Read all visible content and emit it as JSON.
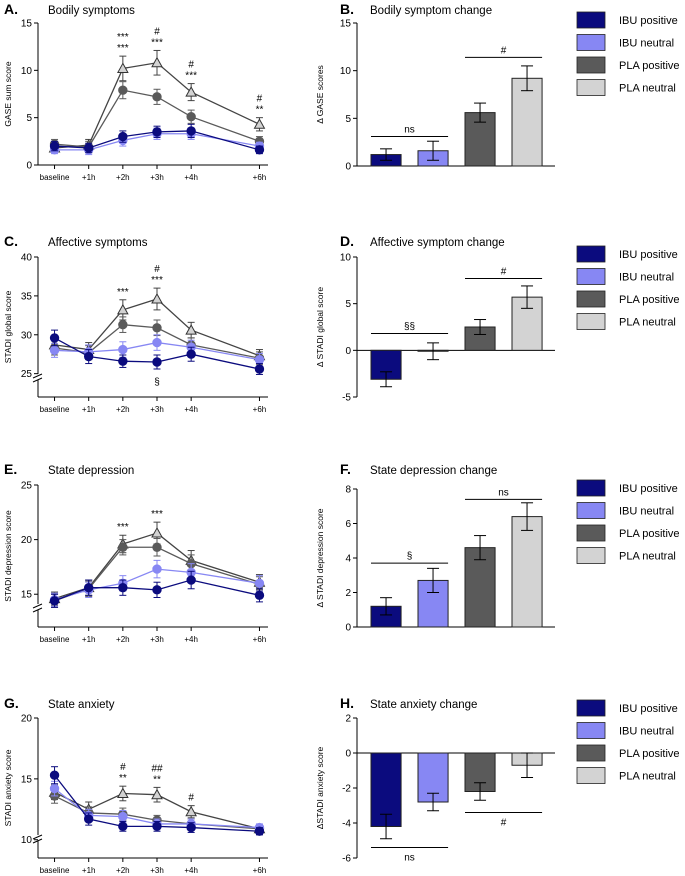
{
  "colors": {
    "ibu_positive": "#0b0b7e",
    "ibu_neutral": "#8787f3",
    "pla_positive": "#5a5a5a",
    "pla_neutral": "#d3d3d3",
    "axis": "#000000"
  },
  "legend": [
    "IBU positive",
    "IBU neutral",
    "PLA positive",
    "PLA neutral"
  ],
  "line_series_names": [
    "IBU positive",
    "IBU neutral",
    "PLA positive",
    "PLA neutral"
  ],
  "bar_categories": [
    "IBU positive",
    "IBU neutral",
    "PLA positive",
    "PLA neutral"
  ],
  "chart_data": [
    {
      "id": "A",
      "type": "line",
      "panel_label": "A.",
      "title": "Bodily symptoms",
      "xlabel": "",
      "ylabel": "GASE sum score",
      "x": [
        "baseline",
        "+1h",
        "+2h",
        "+3h",
        "+4h",
        "+6h"
      ],
      "x_positions": [
        0,
        1,
        2,
        3,
        4,
        6
      ],
      "ylim": [
        0,
        15
      ],
      "yticks": [
        0,
        5,
        10,
        15
      ],
      "axis_break": false,
      "series": [
        {
          "name": "IBU positive",
          "values": [
            2.0,
            1.8,
            3.0,
            3.5,
            3.6,
            1.6
          ],
          "errors": [
            0.5,
            0.5,
            0.6,
            0.6,
            0.7,
            0.4
          ]
        },
        {
          "name": "IBU neutral",
          "values": [
            1.6,
            1.6,
            2.6,
            3.3,
            3.3,
            2.0
          ],
          "errors": [
            0.4,
            0.5,
            0.6,
            0.6,
            0.6,
            0.4
          ]
        },
        {
          "name": "PLA positive",
          "values": [
            2.2,
            1.9,
            7.9,
            7.2,
            5.1,
            2.5
          ],
          "errors": [
            0.5,
            0.6,
            0.9,
            0.8,
            0.7,
            0.5
          ]
        },
        {
          "name": "PLA neutral",
          "values": [
            1.8,
            2.1,
            10.2,
            10.8,
            7.7,
            4.3
          ],
          "errors": [
            0.4,
            0.6,
            1.3,
            1.3,
            0.9,
            0.7
          ]
        }
      ],
      "annotations": [
        {
          "x": 2,
          "lines": [
            "***",
            "***"
          ]
        },
        {
          "x": 3,
          "lines": [
            "#",
            "***"
          ]
        },
        {
          "x": 4,
          "lines": [
            "#",
            "***"
          ]
        },
        {
          "x": 6,
          "lines": [
            "#",
            "**"
          ]
        }
      ],
      "below_annotations": []
    },
    {
      "id": "B",
      "type": "bar",
      "panel_label": "B.",
      "title": "Bodily symptom change",
      "ylabel": "Δ GASE scores",
      "ylim": [
        0,
        15
      ],
      "yticks": [
        0,
        5,
        10,
        15
      ],
      "categories": [
        "IBU positive",
        "IBU neutral",
        "PLA positive",
        "PLA neutral"
      ],
      "values": [
        1.2,
        1.6,
        5.6,
        9.2
      ],
      "errors": [
        0.6,
        1.0,
        1.0,
        1.3
      ],
      "brackets": [
        {
          "from": 0,
          "to": 1,
          "level": 3.1,
          "label": "ns",
          "side": "above"
        },
        {
          "from": 2,
          "to": 3,
          "level": 11.4,
          "label": "#",
          "side": "above"
        }
      ]
    },
    {
      "id": "C",
      "type": "line",
      "panel_label": "C.",
      "title": "Affective symptoms",
      "xlabel": "",
      "ylabel": "STADI global score",
      "x": [
        "baseline",
        "+1h",
        "+2h",
        "+3h",
        "+4h",
        "+6h"
      ],
      "x_positions": [
        0,
        1,
        2,
        3,
        4,
        6
      ],
      "ylim": [
        22,
        40
      ],
      "yticks": [
        25,
        30,
        35,
        40
      ],
      "axis_break": true,
      "series": [
        {
          "name": "IBU positive",
          "values": [
            29.6,
            27.2,
            26.6,
            26.5,
            27.5,
            25.6
          ],
          "errors": [
            1.0,
            0.9,
            0.8,
            0.9,
            0.9,
            0.7
          ]
        },
        {
          "name": "IBU neutral",
          "values": [
            28.0,
            27.8,
            28.1,
            29.0,
            28.4,
            26.8
          ],
          "errors": [
            0.9,
            0.9,
            1.0,
            1.0,
            0.9,
            0.8
          ]
        },
        {
          "name": "PLA positive",
          "values": [
            28.3,
            27.7,
            31.3,
            30.9,
            28.7,
            27.0
          ],
          "errors": [
            0.9,
            0.9,
            1.0,
            1.0,
            0.9,
            0.8
          ]
        },
        {
          "name": "PLA neutral",
          "values": [
            28.7,
            28.1,
            33.2,
            34.6,
            30.6,
            27.3
          ],
          "errors": [
            0.9,
            0.9,
            1.3,
            1.4,
            1.0,
            0.8
          ]
        }
      ],
      "annotations": [
        {
          "x": 2,
          "lines": [
            "***"
          ]
        },
        {
          "x": 3,
          "lines": [
            "#",
            "***"
          ]
        }
      ],
      "below_annotations": [
        {
          "x": 3,
          "label": "§"
        }
      ]
    },
    {
      "id": "D",
      "type": "bar",
      "panel_label": "D.",
      "title": "Affective symptom change",
      "ylabel": "Δ STADI global score",
      "ylim": [
        -5,
        10
      ],
      "yticks": [
        -5,
        0,
        5,
        10
      ],
      "categories": [
        "IBU positive",
        "IBU neutral",
        "PLA positive",
        "PLA neutral"
      ],
      "values": [
        -3.1,
        -0.1,
        2.5,
        5.7
      ],
      "errors": [
        0.8,
        0.9,
        0.8,
        1.2
      ],
      "brackets": [
        {
          "from": 0,
          "to": 1,
          "level": 1.8,
          "label": "§§",
          "side": "above"
        },
        {
          "from": 2,
          "to": 3,
          "level": 7.7,
          "label": "#",
          "side": "above"
        }
      ]
    },
    {
      "id": "E",
      "type": "line",
      "panel_label": "E.",
      "title": "State depression",
      "xlabel": "",
      "ylabel": "STADI depression score",
      "x": [
        "baseline",
        "+1h",
        "+2h",
        "+3h",
        "+4h",
        "+6h"
      ],
      "x_positions": [
        0,
        1,
        2,
        3,
        4,
        6
      ],
      "ylim": [
        12,
        25
      ],
      "yticks": [
        15,
        20,
        25
      ],
      "axis_break": true,
      "series": [
        {
          "name": "IBU positive",
          "values": [
            14.4,
            15.6,
            15.6,
            15.4,
            16.3,
            14.9
          ],
          "errors": [
            0.6,
            0.7,
            0.7,
            0.7,
            0.8,
            0.6
          ]
        },
        {
          "name": "IBU neutral",
          "values": [
            14.5,
            15.4,
            16.0,
            17.3,
            17.0,
            16.0
          ],
          "errors": [
            0.6,
            0.7,
            0.7,
            0.8,
            0.8,
            0.7
          ]
        },
        {
          "name": "PLA positive",
          "values": [
            14.4,
            15.5,
            19.3,
            19.3,
            17.8,
            15.9
          ],
          "errors": [
            0.6,
            0.7,
            0.7,
            0.8,
            0.8,
            0.7
          ]
        },
        {
          "name": "PLA neutral",
          "values": [
            14.6,
            15.6,
            19.6,
            20.6,
            18.1,
            16.1
          ],
          "errors": [
            0.6,
            0.7,
            0.8,
            1.0,
            0.9,
            0.7
          ]
        }
      ],
      "annotations": [
        {
          "x": 2,
          "lines": [
            "***"
          ]
        },
        {
          "x": 3,
          "lines": [
            "***"
          ]
        }
      ],
      "below_annotations": []
    },
    {
      "id": "F",
      "type": "bar",
      "panel_label": "F.",
      "title": "State depression change",
      "ylabel": "Δ STADI depression score",
      "ylim": [
        0,
        8
      ],
      "yticks": [
        0,
        2,
        4,
        6,
        8
      ],
      "categories": [
        "IBU positive",
        "IBU neutral",
        "PLA positive",
        "PLA neutral"
      ],
      "values": [
        1.2,
        2.7,
        4.6,
        6.4
      ],
      "errors": [
        0.5,
        0.7,
        0.7,
        0.8
      ],
      "brackets": [
        {
          "from": 0,
          "to": 1,
          "level": 3.7,
          "label": "§",
          "side": "above"
        },
        {
          "from": 2,
          "to": 3,
          "level": 7.4,
          "label": "ns",
          "side": "above"
        }
      ]
    },
    {
      "id": "G",
      "type": "line",
      "panel_label": "G.",
      "title": "State anxiety",
      "xlabel": "",
      "ylabel": "STADI anxiety score",
      "x": [
        "baseline",
        "+1h",
        "+2h",
        "+3h",
        "+4h",
        "+6h"
      ],
      "x_positions": [
        0,
        1,
        2,
        3,
        4,
        6
      ],
      "ylim": [
        8.5,
        20
      ],
      "yticks": [
        10,
        15,
        20
      ],
      "axis_break": true,
      "series": [
        {
          "name": "IBU positive",
          "values": [
            15.3,
            11.7,
            11.1,
            11.1,
            11.0,
            10.7
          ],
          "errors": [
            0.7,
            0.5,
            0.4,
            0.4,
            0.4,
            0.3
          ]
        },
        {
          "name": "IBU neutral",
          "values": [
            14.2,
            12.0,
            11.9,
            11.3,
            11.3,
            11.0
          ],
          "errors": [
            0.6,
            0.5,
            0.5,
            0.4,
            0.4,
            0.3
          ]
        },
        {
          "name": "PLA positive",
          "values": [
            13.6,
            12.2,
            12.1,
            11.6,
            11.3,
            10.9
          ],
          "errors": [
            0.6,
            0.5,
            0.5,
            0.4,
            0.4,
            0.3
          ]
        },
        {
          "name": "PLA neutral",
          "values": [
            13.9,
            12.5,
            13.8,
            13.7,
            12.3,
            10.9
          ],
          "errors": [
            0.6,
            0.6,
            0.6,
            0.6,
            0.5,
            0.3
          ]
        }
      ],
      "annotations": [
        {
          "x": 2,
          "lines": [
            "#",
            "**"
          ]
        },
        {
          "x": 3,
          "lines": [
            "##",
            "**"
          ]
        },
        {
          "x": 4,
          "lines": [
            "#"
          ]
        }
      ],
      "below_annotations": []
    },
    {
      "id": "H",
      "type": "bar",
      "panel_label": "H.",
      "title": "State anxiety change",
      "ylabel": "ΔSTADI anxiety score",
      "ylim": [
        -6,
        2
      ],
      "yticks": [
        -6,
        -4,
        -2,
        0,
        2
      ],
      "categories": [
        "IBU positive",
        "IBU neutral",
        "PLA positive",
        "PLA neutral"
      ],
      "values": [
        -4.2,
        -2.8,
        -2.2,
        -0.7
      ],
      "errors": [
        0.7,
        0.5,
        0.5,
        0.7
      ],
      "brackets": [
        {
          "from": 0,
          "to": 1,
          "level": -5.4,
          "label": "ns",
          "side": "below"
        },
        {
          "from": 2,
          "to": 3,
          "level": -3.4,
          "label": "#",
          "side": "below"
        }
      ]
    }
  ]
}
